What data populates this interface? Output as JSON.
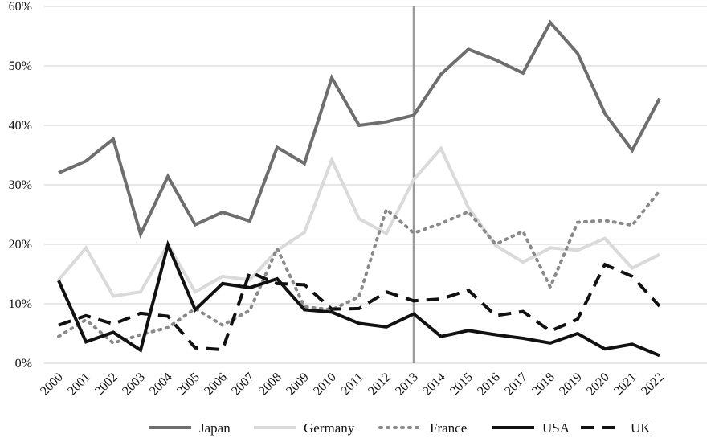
{
  "chart_data": {
    "type": "line",
    "title": "",
    "xlabel": "",
    "ylabel": "",
    "ylim": [
      0,
      60
    ],
    "y_ticks": [
      "0%",
      "10%",
      "20%",
      "30%",
      "40%",
      "50%",
      "60%"
    ],
    "y_tick_values": [
      0,
      10,
      20,
      30,
      40,
      50,
      60
    ],
    "grid": "horizontal",
    "legend_position": "bottom",
    "reference_line_x": "2013",
    "categories": [
      "2000",
      "2001",
      "2002",
      "2003",
      "2004",
      "2005",
      "2006",
      "2007",
      "2008",
      "2009",
      "2010",
      "2011",
      "2012",
      "2013",
      "2014",
      "2015",
      "2016",
      "2017",
      "2018",
      "2019",
      "2020",
      "2021",
      "2022"
    ],
    "series": [
      {
        "name": "Japan",
        "color": "#6e6e6e",
        "style": "solid",
        "values": [
          32,
          34,
          37.7,
          21.7,
          31.4,
          23.3,
          25.4,
          23.9,
          36.3,
          33.6,
          48,
          40,
          40.6,
          41.7,
          48.6,
          52.8,
          51,
          48.8,
          57.3,
          52.1,
          42,
          35.8,
          44.5
        ]
      },
      {
        "name": "Germany",
        "color": "#dadada",
        "style": "solid",
        "values": [
          14,
          19.4,
          11.3,
          12,
          20,
          12,
          14.6,
          14,
          19,
          22,
          34.2,
          24.3,
          21.8,
          30.9,
          36.1,
          26.2,
          19.8,
          17,
          19.4,
          19,
          21,
          16,
          18.3
        ]
      },
      {
        "name": "France",
        "color": "#8a8a8a",
        "style": "dotted",
        "values": [
          4.5,
          7.3,
          3.4,
          4.8,
          6,
          9.2,
          6.4,
          8.9,
          19.3,
          9.5,
          9,
          11.2,
          25.9,
          21.9,
          23.5,
          25.5,
          20,
          22.2,
          12.8,
          23.7,
          24,
          23.2,
          29
        ]
      },
      {
        "name": "USA",
        "color": "#111111",
        "style": "solid",
        "values": [
          13.9,
          3.6,
          5.2,
          2.2,
          19.9,
          9,
          13.4,
          12.7,
          14.2,
          9,
          8.6,
          6.7,
          6.1,
          8.3,
          4.5,
          5.5,
          4.8,
          4.2,
          3.4,
          5,
          2.4,
          3.2,
          1.3
        ]
      },
      {
        "name": "UK",
        "color": "#111111",
        "style": "dashed",
        "values": [
          6.4,
          8,
          6.6,
          8.4,
          7.9,
          2.6,
          2.3,
          15.3,
          13.4,
          13.2,
          9.1,
          9.2,
          12,
          10.5,
          10.8,
          12.3,
          8,
          8.7,
          5.4,
          7.4,
          16.6,
          14.6,
          9.6
        ]
      }
    ]
  }
}
